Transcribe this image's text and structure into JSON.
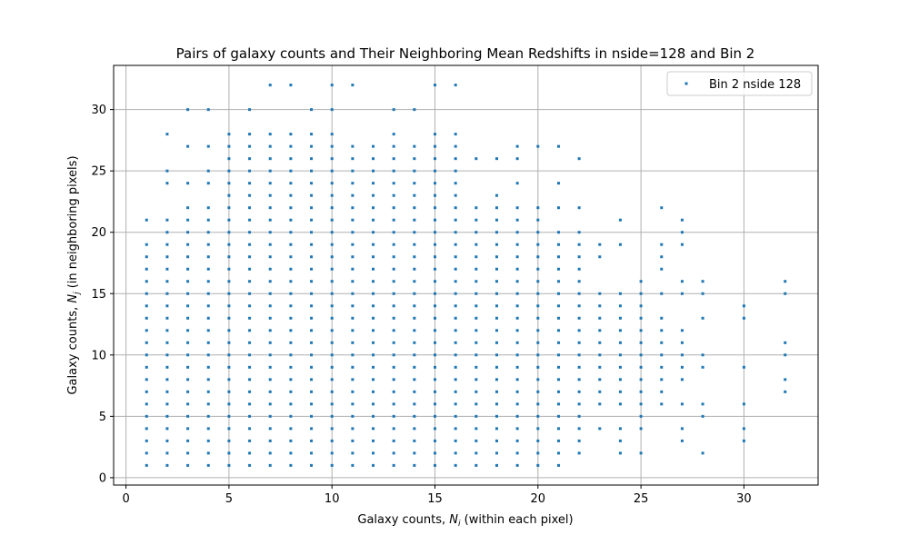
{
  "chart_data": {
    "type": "scatter",
    "title": "Pairs of galaxy counts and Their Neighboring Mean Redshifts in nside=128 and Bin 2",
    "xlabel": {
      "pre": "Galaxy counts, ",
      "sym": "N",
      "sub": "i",
      "post": " (within each pixel)"
    },
    "ylabel": {
      "pre": "Galaxy counts, ",
      "sym": "N",
      "sub": "j",
      "post": " (in neighboring pixels)"
    },
    "xlim": [
      -0.6,
      33.6
    ],
    "ylim": [
      -0.6,
      33.6
    ],
    "xticks": [
      0,
      5,
      10,
      15,
      20,
      25,
      30
    ],
    "yticks": [
      0,
      5,
      10,
      15,
      20,
      25,
      30
    ],
    "grid": true,
    "legend": {
      "position": "top-right",
      "entries": [
        "Bin 2 nside 128"
      ]
    },
    "colors": {
      "series": "#1f77b4",
      "grid": "#b0b0b0",
      "frame": "#000000"
    },
    "series": [
      {
        "name": "Bin 2 nside 128",
        "columns": [
          {
            "x": 1,
            "y": [
              [
                1,
                19
              ],
              21
            ]
          },
          {
            "x": 2,
            "y": [
              [
                1,
                21
              ],
              24,
              25,
              28
            ]
          },
          {
            "x": 3,
            "y": [
              [
                1,
                22
              ],
              24,
              27,
              30
            ]
          },
          {
            "x": 4,
            "y": [
              [
                1,
                22
              ],
              24,
              25,
              27,
              30
            ]
          },
          {
            "x": 5,
            "y": [
              [
                1,
                28
              ]
            ]
          },
          {
            "x": 6,
            "y": [
              [
                1,
                28
              ],
              30
            ]
          },
          {
            "x": 7,
            "y": [
              [
                1,
                28
              ],
              32
            ]
          },
          {
            "x": 8,
            "y": [
              [
                1,
                28
              ],
              32
            ]
          },
          {
            "x": 9,
            "y": [
              [
                1,
                28
              ],
              30
            ]
          },
          {
            "x": 10,
            "y": [
              [
                1,
                28
              ],
              30,
              32
            ]
          },
          {
            "x": 11,
            "y": [
              [
                1,
                27
              ],
              32
            ]
          },
          {
            "x": 12,
            "y": [
              [
                1,
                27
              ]
            ]
          },
          {
            "x": 13,
            "y": [
              [
                1,
                28
              ],
              30
            ]
          },
          {
            "x": 14,
            "y": [
              [
                1,
                27
              ],
              30
            ]
          },
          {
            "x": 15,
            "y": [
              [
                1,
                28
              ],
              32
            ]
          },
          {
            "x": 16,
            "y": [
              [
                1,
                28
              ],
              32
            ]
          },
          {
            "x": 17,
            "y": [
              [
                1,
                22
              ],
              26
            ]
          },
          {
            "x": 18,
            "y": [
              [
                1,
                23
              ],
              26
            ]
          },
          {
            "x": 19,
            "y": [
              [
                1,
                22
              ],
              24,
              26,
              27
            ]
          },
          {
            "x": 20,
            "y": [
              [
                1,
                22
              ],
              27
            ]
          },
          {
            "x": 21,
            "y": [
              [
                1,
                20
              ],
              22,
              24,
              27
            ]
          },
          {
            "x": 22,
            "y": [
              [
                2,
                20
              ],
              22,
              26
            ]
          },
          {
            "x": 23,
            "y": [
              4,
              6,
              7,
              8,
              9,
              10,
              11,
              12,
              13,
              14,
              15,
              18,
              19
            ]
          },
          {
            "x": 24,
            "y": [
              2,
              3,
              4,
              6,
              7,
              8,
              9,
              10,
              11,
              12,
              13,
              14,
              15,
              19,
              21
            ]
          },
          {
            "x": 25,
            "y": [
              2,
              4,
              5,
              6,
              7,
              8,
              9,
              10,
              11,
              12,
              13,
              14,
              15,
              16
            ]
          },
          {
            "x": 26,
            "y": [
              6,
              7,
              8,
              9,
              10,
              11,
              12,
              13,
              15,
              17,
              18,
              19,
              22
            ]
          },
          {
            "x": 27,
            "y": [
              3,
              4,
              6,
              8,
              9,
              10,
              11,
              12,
              15,
              16,
              19,
              20,
              21
            ]
          },
          {
            "x": 28,
            "y": [
              2,
              5,
              6,
              9,
              10,
              13,
              15,
              16
            ]
          },
          {
            "x": 30,
            "y": [
              3,
              4,
              6,
              9,
              13,
              14
            ]
          },
          {
            "x": 32,
            "y": [
              7,
              8,
              10,
              11,
              15,
              16
            ]
          }
        ]
      }
    ]
  }
}
